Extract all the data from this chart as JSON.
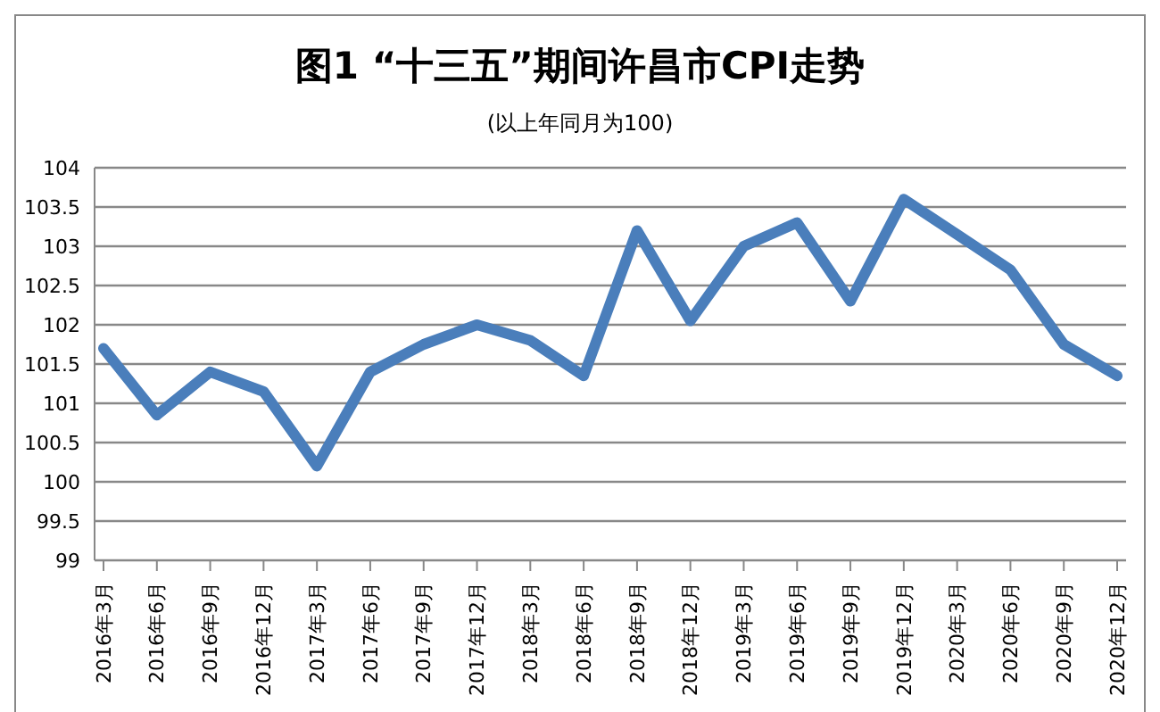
{
  "chart_data": {
    "type": "line",
    "title": "图1 “十三五”期间许昌市CPI走势",
    "subtitle": "(以上年同月为100)",
    "categories": [
      "2016年3月",
      "2016年6月",
      "2016年9月",
      "2016年12月",
      "2017年3月",
      "2017年6月",
      "2017年9月",
      "2017年12月",
      "2018年3月",
      "2018年6月",
      "2018年9月",
      "2018年12月",
      "2019年3月",
      "2019年6月",
      "2019年9月",
      "2019年12月",
      "2020年3月",
      "2020年6月",
      "2020年9月",
      "2020年12月"
    ],
    "series": [
      {
        "color": "#4a7ebb",
        "values": [
          101.7,
          100.85,
          101.4,
          101.15,
          100.2,
          101.4,
          101.75,
          102.0,
          101.8,
          101.35,
          103.2,
          102.05,
          103.0,
          103.3,
          102.3,
          103.6,
          103.15,
          102.7,
          101.75,
          101.35
        ]
      }
    ],
    "ylim": [
      99,
      104
    ],
    "yticks": [
      99,
      99.5,
      100,
      100.5,
      101,
      101.5,
      102,
      102.5,
      103,
      103.5,
      104
    ],
    "grid": "y",
    "legend": false,
    "marker": "none",
    "line_style": "solid"
  }
}
